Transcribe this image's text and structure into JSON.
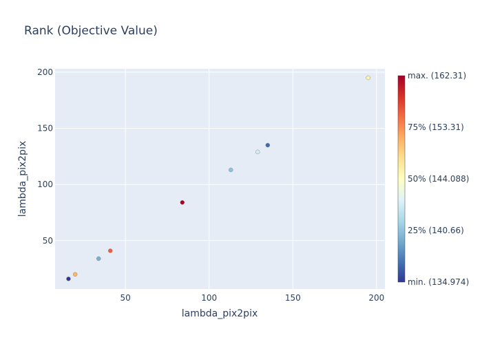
{
  "chart_data": {
    "type": "scatter",
    "title": "Rank (Objective Value)",
    "xlabel": "lambda_pix2pix",
    "ylabel": "lambda_pix2pix",
    "xlim": [
      8,
      205
    ],
    "ylim": [
      7,
      203
    ],
    "xticks": [
      50,
      100,
      150,
      200
    ],
    "yticks": [
      50,
      100,
      150,
      200
    ],
    "grid": true,
    "points": [
      {
        "x": 16,
        "y": 16,
        "value": 134.974
      },
      {
        "x": 20,
        "y": 20,
        "value": 153.7
      },
      {
        "x": 34,
        "y": 34,
        "value": 140.6
      },
      {
        "x": 41,
        "y": 41,
        "value": 157.5
      },
      {
        "x": 84,
        "y": 84,
        "value": 162.31
      },
      {
        "x": 113,
        "y": 113,
        "value": 141.8
      },
      {
        "x": 129,
        "y": 129,
        "value": 145.3
      },
      {
        "x": 135,
        "y": 135,
        "value": 137.2
      },
      {
        "x": 195,
        "y": 195,
        "value": 149.6
      }
    ],
    "colorbar": {
      "min": 134.974,
      "max": 162.31,
      "labels": [
        {
          "text": "min. (134.974)",
          "frac": 0
        },
        {
          "text": "25% (140.66)",
          "frac": 0.25
        },
        {
          "text": "50% (144.088)",
          "frac": 0.5
        },
        {
          "text": "75% (153.31)",
          "frac": 0.75
        },
        {
          "text": "max. (162.31)",
          "frac": 1
        }
      ],
      "colors": [
        "#313695",
        "#4575b4",
        "#74add1",
        "#abd9e9",
        "#e0f3f8",
        "#ffffbf",
        "#fee090",
        "#fdae61",
        "#f46d43",
        "#d73027",
        "#a50026"
      ]
    }
  }
}
